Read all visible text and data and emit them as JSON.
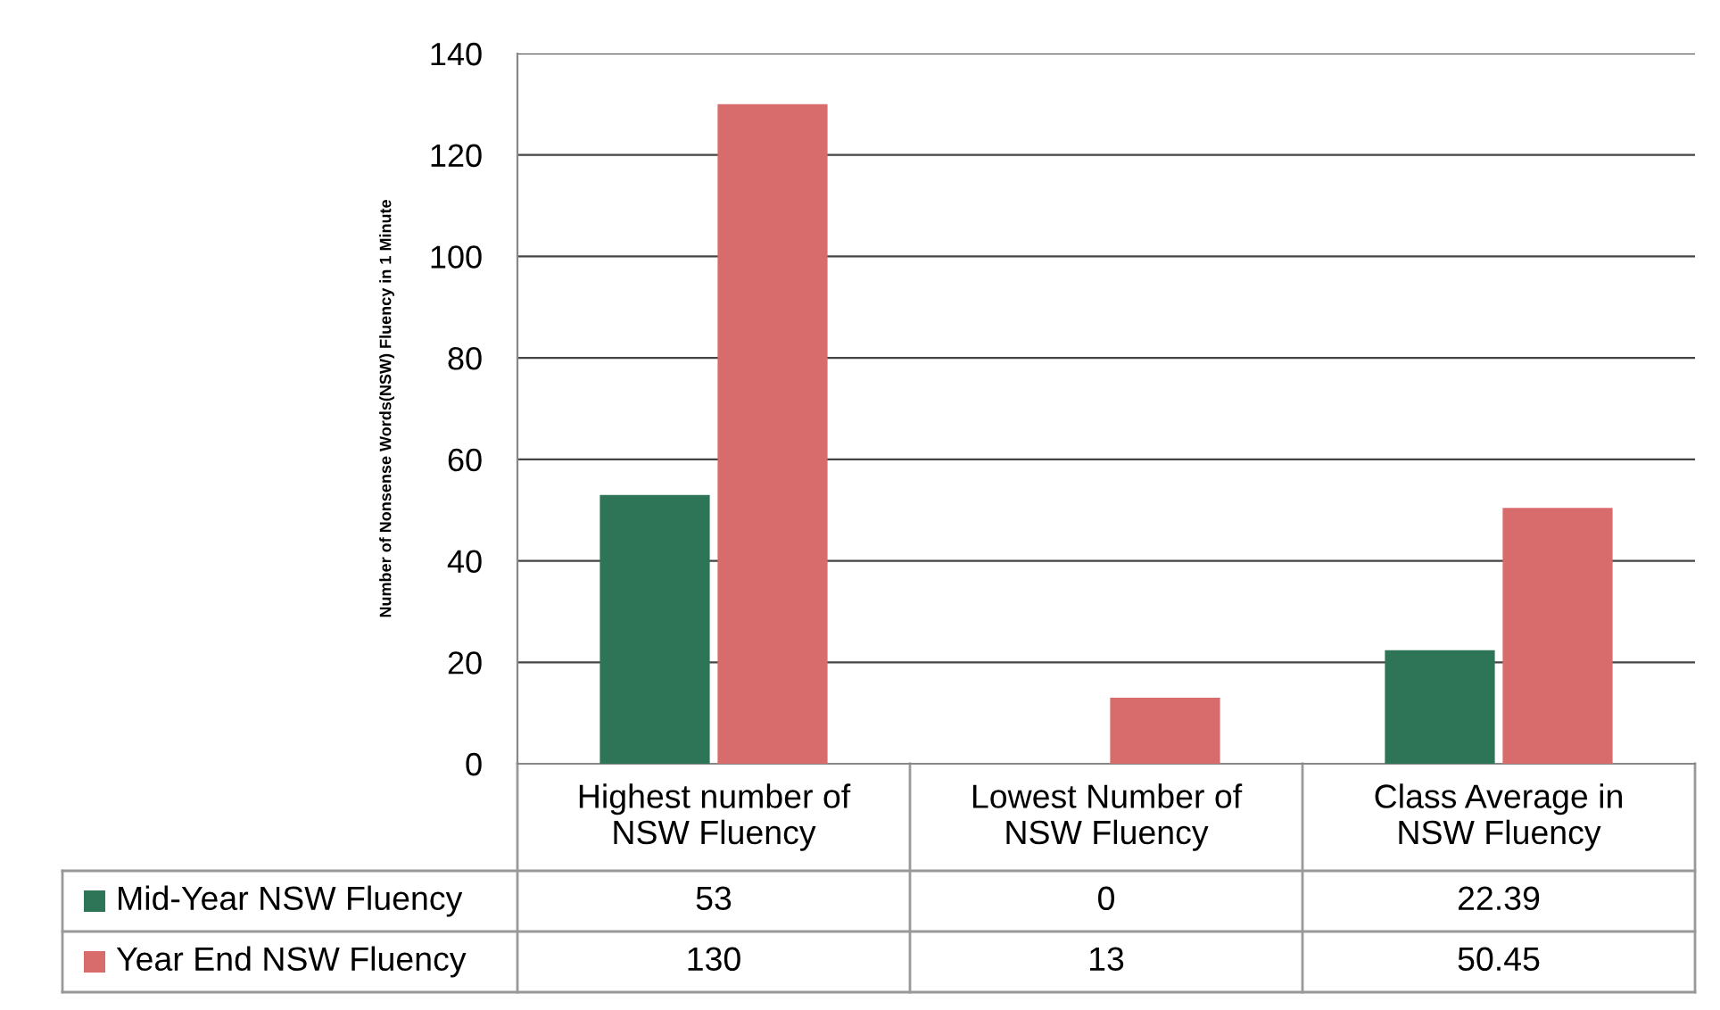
{
  "chart_data": {
    "type": "bar",
    "ylabel": "Number of Nonsense Words(NSW) Fluency in 1 Minute",
    "categories": [
      "Highest number of\nNSW Fluency",
      "Lowest Number of\nNSW Fluency",
      "Class Average in\nNSW Fluency"
    ],
    "series": [
      {
        "name": "Mid-Year NSW Fluency",
        "color": "#2e7558",
        "values": [
          53,
          0,
          22.39
        ]
      },
      {
        "name": "Year End NSW Fluency",
        "color": "#d86b6b",
        "values": [
          130,
          13,
          50.45
        ]
      }
    ],
    "ylim": [
      0,
      140
    ],
    "yticks": [
      0,
      20,
      40,
      60,
      80,
      100,
      120,
      140
    ],
    "grid": "y",
    "legend": "bottom",
    "data_labels": true
  }
}
